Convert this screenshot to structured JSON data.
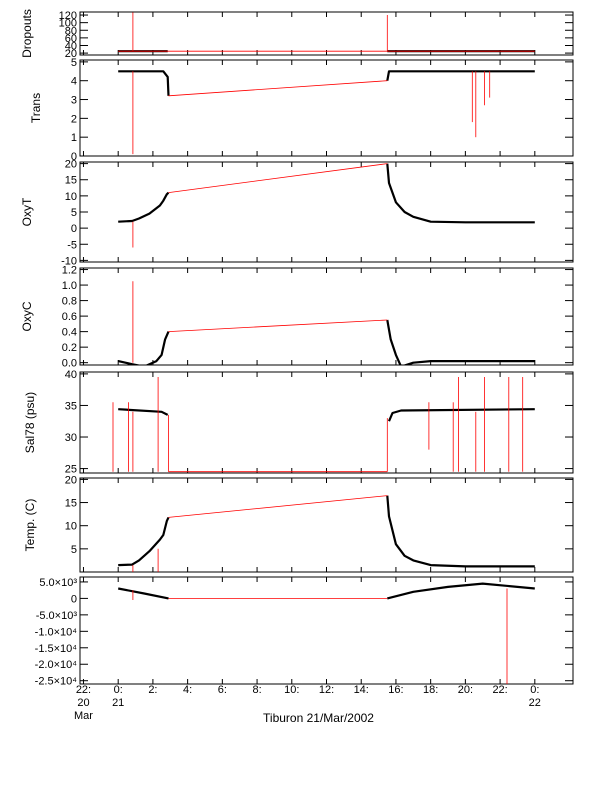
{
  "chart_data": [
    {
      "type": "line",
      "ylabel": "Dropouts",
      "yticks": [
        "20",
        "40",
        "60",
        "80",
        "100",
        "120"
      ],
      "ytick_values": [
        20,
        40,
        60,
        80,
        100,
        120
      ],
      "ylim": [
        15,
        128
      ],
      "series": [
        {
          "role": "data",
          "color": "#000000",
          "points": [
            [
              0.0,
              25
            ],
            [
              2.85,
              25
            ]
          ]
        },
        {
          "role": "data",
          "color": "#000000",
          "points": [
            [
              15.5,
              25
            ],
            [
              24.0,
              25
            ]
          ]
        },
        {
          "role": "interp",
          "color": "#ff0000",
          "points": [
            [
              0.0,
              25
            ],
            [
              24.0,
              25
            ]
          ]
        },
        {
          "role": "spike",
          "color": "#ff0000",
          "points": [
            [
              0.85,
              25
            ],
            [
              0.85,
              127
            ]
          ]
        },
        {
          "role": "spike",
          "color": "#ff0000",
          "points": [
            [
              15.5,
              25
            ],
            [
              15.5,
              120
            ]
          ]
        }
      ]
    },
    {
      "type": "line",
      "ylabel": "Trans",
      "yticks": [
        "0",
        "1",
        "2",
        "3",
        "4",
        "5"
      ],
      "ytick_values": [
        0,
        1,
        2,
        3,
        4,
        5
      ],
      "ylim": [
        0,
        5.1
      ],
      "series": [
        {
          "role": "data",
          "color": "#000000",
          "points": [
            [
              0.0,
              4.5
            ],
            [
              2.6,
              4.5
            ],
            [
              2.85,
              4.2
            ],
            [
              2.9,
              3.2
            ]
          ]
        },
        {
          "role": "data",
          "color": "#000000",
          "points": [
            [
              15.5,
              4.0
            ],
            [
              15.6,
              4.5
            ],
            [
              24.0,
              4.5
            ]
          ]
        },
        {
          "role": "interp",
          "color": "#ff0000",
          "points": [
            [
              2.9,
              3.2
            ],
            [
              15.5,
              4.0
            ]
          ]
        },
        {
          "role": "spike",
          "color": "#ff0000",
          "points": [
            [
              0.85,
              4.5
            ],
            [
              0.85,
              0.1
            ]
          ]
        },
        {
          "role": "spike",
          "color": "#ff0000",
          "points": [
            [
              20.6,
              4.5
            ],
            [
              20.6,
              1.0
            ]
          ]
        },
        {
          "role": "spike",
          "color": "#ff0000",
          "points": [
            [
              20.4,
              4.5
            ],
            [
              20.4,
              1.8
            ]
          ]
        },
        {
          "role": "spike",
          "color": "#ff0000",
          "points": [
            [
              21.1,
              4.5
            ],
            [
              21.1,
              2.7
            ]
          ]
        },
        {
          "role": "spike",
          "color": "#ff0000",
          "points": [
            [
              21.4,
              4.5
            ],
            [
              21.4,
              3.1
            ]
          ]
        }
      ]
    },
    {
      "type": "line",
      "ylabel": "OxyT",
      "yticks": [
        "-10",
        "-5",
        "0",
        "5",
        "10",
        "15",
        "20"
      ],
      "ytick_values": [
        -10,
        -5,
        0,
        5,
        10,
        15,
        20
      ],
      "ylim": [
        -10.5,
        20.5
      ],
      "series": [
        {
          "role": "data",
          "color": "#000000",
          "points": [
            [
              0.0,
              2.0
            ],
            [
              0.8,
              2.2
            ],
            [
              1.2,
              3.0
            ],
            [
              1.8,
              4.5
            ],
            [
              2.4,
              7.0
            ],
            [
              2.6,
              8.5
            ],
            [
              2.8,
              10.5
            ],
            [
              2.9,
              11.0
            ]
          ]
        },
        {
          "role": "data",
          "color": "#000000",
          "points": [
            [
              15.5,
              20.0
            ],
            [
              15.6,
              14.0
            ],
            [
              16.0,
              8.0
            ],
            [
              16.5,
              5.0
            ],
            [
              17.0,
              3.5
            ],
            [
              18.0,
              2.0
            ],
            [
              20.0,
              1.8
            ],
            [
              24.0,
              1.8
            ]
          ]
        },
        {
          "role": "interp",
          "color": "#ff0000",
          "points": [
            [
              2.9,
              11.0
            ],
            [
              15.5,
              20.0
            ]
          ]
        },
        {
          "role": "spike",
          "color": "#ff0000",
          "points": [
            [
              0.85,
              2.0
            ],
            [
              0.85,
              -6.0
            ]
          ]
        }
      ]
    },
    {
      "type": "line",
      "ylabel": "OxyC",
      "yticks": [
        "0.0",
        "0.2",
        "0.4",
        "0.6",
        "0.8",
        "1.0",
        "1.2"
      ],
      "ytick_values": [
        0.0,
        0.2,
        0.4,
        0.6,
        0.8,
        1.0,
        1.2
      ],
      "ylim": [
        -0.03,
        1.22
      ],
      "series": [
        {
          "role": "data",
          "color": "#000000",
          "points": [
            [
              0.0,
              0.02
            ],
            [
              0.8,
              -0.02
            ],
            [
              1.5,
              -0.05
            ],
            [
              2.2,
              0.02
            ],
            [
              2.5,
              0.1
            ],
            [
              2.7,
              0.3
            ],
            [
              2.9,
              0.4
            ]
          ]
        },
        {
          "role": "data",
          "color": "#000000",
          "points": [
            [
              15.5,
              0.55
            ],
            [
              15.7,
              0.3
            ],
            [
              16.0,
              0.1
            ],
            [
              16.3,
              -0.05
            ],
            [
              17.0,
              0.0
            ],
            [
              18.0,
              0.02
            ],
            [
              24.0,
              0.02
            ]
          ]
        },
        {
          "role": "interp",
          "color": "#ff0000",
          "points": [
            [
              2.9,
              0.4
            ],
            [
              15.5,
              0.55
            ]
          ]
        },
        {
          "role": "spike",
          "color": "#ff0000",
          "points": [
            [
              0.85,
              0.0
            ],
            [
              0.85,
              1.05
            ]
          ]
        }
      ]
    },
    {
      "type": "line",
      "ylabel": "Sal78 (psu)",
      "yticks": [
        "25",
        "30",
        "35",
        "40"
      ],
      "ytick_values": [
        25,
        30,
        35,
        40
      ],
      "ylim": [
        24.3,
        40.3
      ],
      "series": [
        {
          "role": "data",
          "color": "#000000",
          "points": [
            [
              0.0,
              34.4
            ],
            [
              2.5,
              34.0
            ],
            [
              2.85,
              33.5
            ]
          ]
        },
        {
          "role": "data",
          "color": "#000000",
          "points": [
            [
              15.6,
              32.5
            ],
            [
              15.8,
              33.8
            ],
            [
              16.3,
              34.2
            ],
            [
              24.0,
              34.4
            ]
          ]
        },
        {
          "role": "interp",
          "color": "#ff0000",
          "points": [
            [
              2.9,
              24.5
            ],
            [
              15.5,
              24.5
            ]
          ]
        },
        {
          "role": "spike",
          "color": "#ff0000",
          "points": [
            [
              0.85,
              34.0
            ],
            [
              0.85,
              24.5
            ]
          ]
        },
        {
          "role": "spike",
          "color": "#ff0000",
          "points": [
            [
              2.9,
              33.5
            ],
            [
              2.9,
              24.5
            ]
          ]
        },
        {
          "role": "spike",
          "color": "#ff0000",
          "points": [
            [
              15.5,
              33.0
            ],
            [
              15.5,
              24.5
            ]
          ]
        },
        {
          "role": "spike",
          "color": "#ff0000",
          "points": [
            [
              -0.3,
              35.5
            ],
            [
              -0.3,
              24.5
            ]
          ]
        },
        {
          "role": "spike",
          "color": "#ff0000",
          "points": [
            [
              0.6,
              35.5
            ],
            [
              0.6,
              24.5
            ]
          ]
        },
        {
          "role": "spike",
          "color": "#ff0000",
          "points": [
            [
              2.3,
              39.5
            ],
            [
              2.3,
              24.5
            ]
          ]
        },
        {
          "role": "spike",
          "color": "#ff0000",
          "points": [
            [
              17.9,
              35.5
            ],
            [
              17.9,
              28.0
            ]
          ]
        },
        {
          "role": "spike",
          "color": "#ff0000",
          "points": [
            [
              19.3,
              35.5
            ],
            [
              19.3,
              24.5
            ]
          ]
        },
        {
          "role": "spike",
          "color": "#ff0000",
          "points": [
            [
              19.6,
              39.5
            ],
            [
              19.6,
              24.5
            ]
          ]
        },
        {
          "role": "spike",
          "color": "#ff0000",
          "points": [
            [
              20.6,
              34.0
            ],
            [
              20.6,
              24.5
            ]
          ]
        },
        {
          "role": "spike",
          "color": "#ff0000",
          "points": [
            [
              21.1,
              39.5
            ],
            [
              21.1,
              24.5
            ]
          ]
        },
        {
          "role": "spike",
          "color": "#ff0000",
          "points": [
            [
              22.5,
              39.5
            ],
            [
              22.5,
              24.5
            ]
          ]
        },
        {
          "role": "spike",
          "color": "#ff0000",
          "points": [
            [
              23.3,
              39.5
            ],
            [
              23.3,
              24.5
            ]
          ]
        }
      ]
    },
    {
      "type": "line",
      "ylabel": "Temp. (C)",
      "yticks": [
        "5",
        "10",
        "15",
        "20"
      ],
      "ytick_values": [
        5,
        10,
        15,
        20
      ],
      "ylim": [
        0,
        20.3
      ],
      "series": [
        {
          "role": "data",
          "color": "#000000",
          "points": [
            [
              0.0,
              1.5
            ],
            [
              0.8,
              1.6
            ],
            [
              1.2,
              2.5
            ],
            [
              1.8,
              4.5
            ],
            [
              2.4,
              7.0
            ],
            [
              2.6,
              8.0
            ],
            [
              2.8,
              11.0
            ],
            [
              2.9,
              11.8
            ]
          ]
        },
        {
          "role": "data",
          "color": "#000000",
          "points": [
            [
              15.5,
              16.5
            ],
            [
              15.6,
              12.0
            ],
            [
              16.0,
              6.0
            ],
            [
              16.5,
              3.5
            ],
            [
              17.0,
              2.5
            ],
            [
              18.0,
              1.5
            ],
            [
              20.0,
              1.2
            ],
            [
              24.0,
              1.2
            ]
          ]
        },
        {
          "role": "interp",
          "color": "#ff0000",
          "points": [
            [
              2.9,
              11.8
            ],
            [
              15.5,
              16.5
            ]
          ]
        },
        {
          "role": "spike",
          "color": "#ff0000",
          "points": [
            [
              0.85,
              1.5
            ],
            [
              0.85,
              -0.5
            ]
          ]
        },
        {
          "role": "spike",
          "color": "#ff0000",
          "points": [
            [
              2.3,
              5.0
            ],
            [
              2.3,
              0.0
            ]
          ]
        }
      ]
    },
    {
      "type": "line",
      "ylabel": "",
      "yticks": [
        "-2.5×10⁴",
        "-2.0×10⁴",
        "-1.5×10⁴",
        "-1.0×10⁴",
        "-5.0×10³",
        "0",
        "5.0×10³"
      ],
      "ytick_values": [
        -25000,
        -20000,
        -15000,
        -10000,
        -5000,
        0,
        5000
      ],
      "ylim": [
        -26000,
        6500
      ],
      "series": [
        {
          "role": "data",
          "color": "#000000",
          "points": [
            [
              0.0,
              3000
            ],
            [
              1.5,
              1500
            ],
            [
              2.9,
              0
            ]
          ]
        },
        {
          "role": "data",
          "color": "#000000",
          "points": [
            [
              15.5,
              0
            ],
            [
              17.0,
              2000
            ],
            [
              19.0,
              3500
            ],
            [
              21.0,
              4500
            ],
            [
              24.0,
              3000
            ]
          ]
        },
        {
          "role": "interp",
          "color": "#ff0000",
          "points": [
            [
              2.9,
              0
            ],
            [
              15.5,
              0
            ]
          ]
        },
        {
          "role": "spike",
          "color": "#ff0000",
          "points": [
            [
              22.4,
              3000
            ],
            [
              22.4,
              -26000
            ]
          ]
        },
        {
          "role": "spike",
          "color": "#ff0000",
          "points": [
            [
              0.85,
              2500
            ],
            [
              0.85,
              -500
            ]
          ]
        }
      ]
    }
  ],
  "x_axis": {
    "xlim": [
      -2.2,
      26.2
    ],
    "ticks": [
      {
        "value": -2,
        "line1": "22:",
        "line2": "20",
        "line3": "Mar"
      },
      {
        "value": 0,
        "line1": "0:",
        "line2": "21",
        "line3": ""
      },
      {
        "value": 2,
        "line1": "2:",
        "line2": "",
        "line3": ""
      },
      {
        "value": 4,
        "line1": "4:",
        "line2": "",
        "line3": ""
      },
      {
        "value": 6,
        "line1": "6:",
        "line2": "",
        "line3": ""
      },
      {
        "value": 8,
        "line1": "8:",
        "line2": "",
        "line3": ""
      },
      {
        "value": 10,
        "line1": "10:",
        "line2": "",
        "line3": ""
      },
      {
        "value": 12,
        "line1": "12:",
        "line2": "",
        "line3": ""
      },
      {
        "value": 14,
        "line1": "14:",
        "line2": "",
        "line3": ""
      },
      {
        "value": 16,
        "line1": "16:",
        "line2": "",
        "line3": ""
      },
      {
        "value": 18,
        "line1": "18:",
        "line2": "",
        "line3": ""
      },
      {
        "value": 20,
        "line1": "20:",
        "line2": "",
        "line3": ""
      },
      {
        "value": 22,
        "line1": "22:",
        "line2": "",
        "line3": ""
      },
      {
        "value": 24,
        "line1": "0:",
        "line2": "22",
        "line3": ""
      }
    ],
    "title": "Tiburon 21/Mar/2002"
  }
}
